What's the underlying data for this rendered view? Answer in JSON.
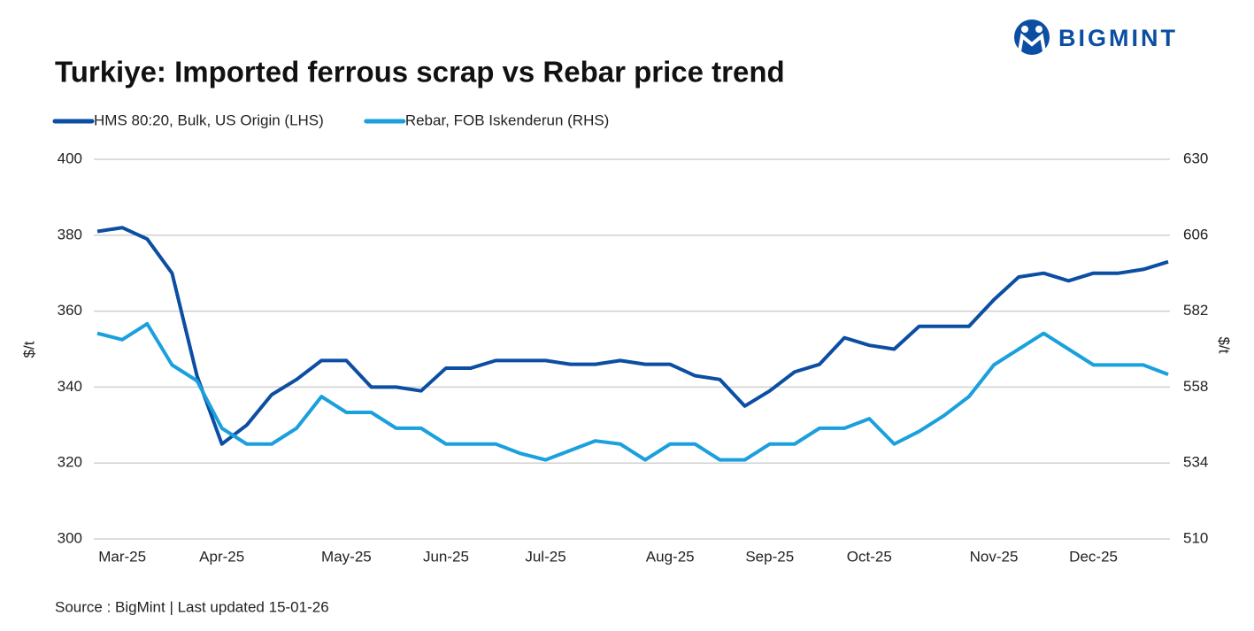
{
  "logo": "BIGMINT",
  "chart_data": {
    "type": "line",
    "title": "Turkiye: Imported ferrous scrap vs Rebar price trend",
    "source": "Source : BigMint | Last updated 15-01-26",
    "ylabel": "$/t",
    "y2label": "$/t",
    "categories": [
      null,
      "Mar-25",
      null,
      null,
      null,
      "Apr-25",
      null,
      null,
      null,
      null,
      "May-25",
      null,
      null,
      null,
      "Jun-25",
      null,
      null,
      null,
      "Jul-25",
      null,
      null,
      null,
      null,
      "Aug-25",
      null,
      null,
      null,
      "Sep-25",
      null,
      null,
      null,
      "Oct-25",
      null,
      null,
      null,
      null,
      "Nov-25",
      null,
      null,
      null,
      "Dec-25",
      null,
      null,
      null
    ],
    "series": [
      {
        "name": "HMS 80:20, Bulk, US Origin (LHS)",
        "color": "#0b4ea2",
        "axis": "y",
        "values": [
          381,
          382,
          379,
          370,
          343,
          325,
          330,
          338,
          342,
          347,
          347,
          340,
          340,
          339,
          345,
          345,
          347,
          347,
          347,
          346,
          346,
          347,
          346,
          346,
          343,
          342,
          335,
          339,
          344,
          346,
          353,
          351,
          350,
          356,
          356,
          356,
          363,
          369,
          370,
          368,
          370,
          370,
          371,
          373
        ]
      },
      {
        "name": "Rebar, FOB Iskenderun (RHS)",
        "color": "#1aa0dc",
        "axis": "y2",
        "values": [
          575,
          573,
          578,
          565,
          560,
          545,
          540,
          540,
          545,
          555,
          550,
          550,
          545,
          545,
          540,
          540,
          540,
          537,
          535,
          538,
          541,
          540,
          535,
          540,
          540,
          535,
          535,
          540,
          540,
          545,
          545,
          548,
          540,
          544,
          549,
          555,
          565,
          570,
          575,
          570,
          565,
          565,
          565,
          562
        ]
      }
    ],
    "ylim": [
      300,
      400
    ],
    "yticks": [
      300,
      320,
      340,
      360,
      380,
      400
    ],
    "y2lim": [
      510,
      630
    ],
    "y2ticks": [
      510,
      534,
      558,
      582,
      606,
      630
    ],
    "grid": true,
    "legend": "top-left"
  }
}
